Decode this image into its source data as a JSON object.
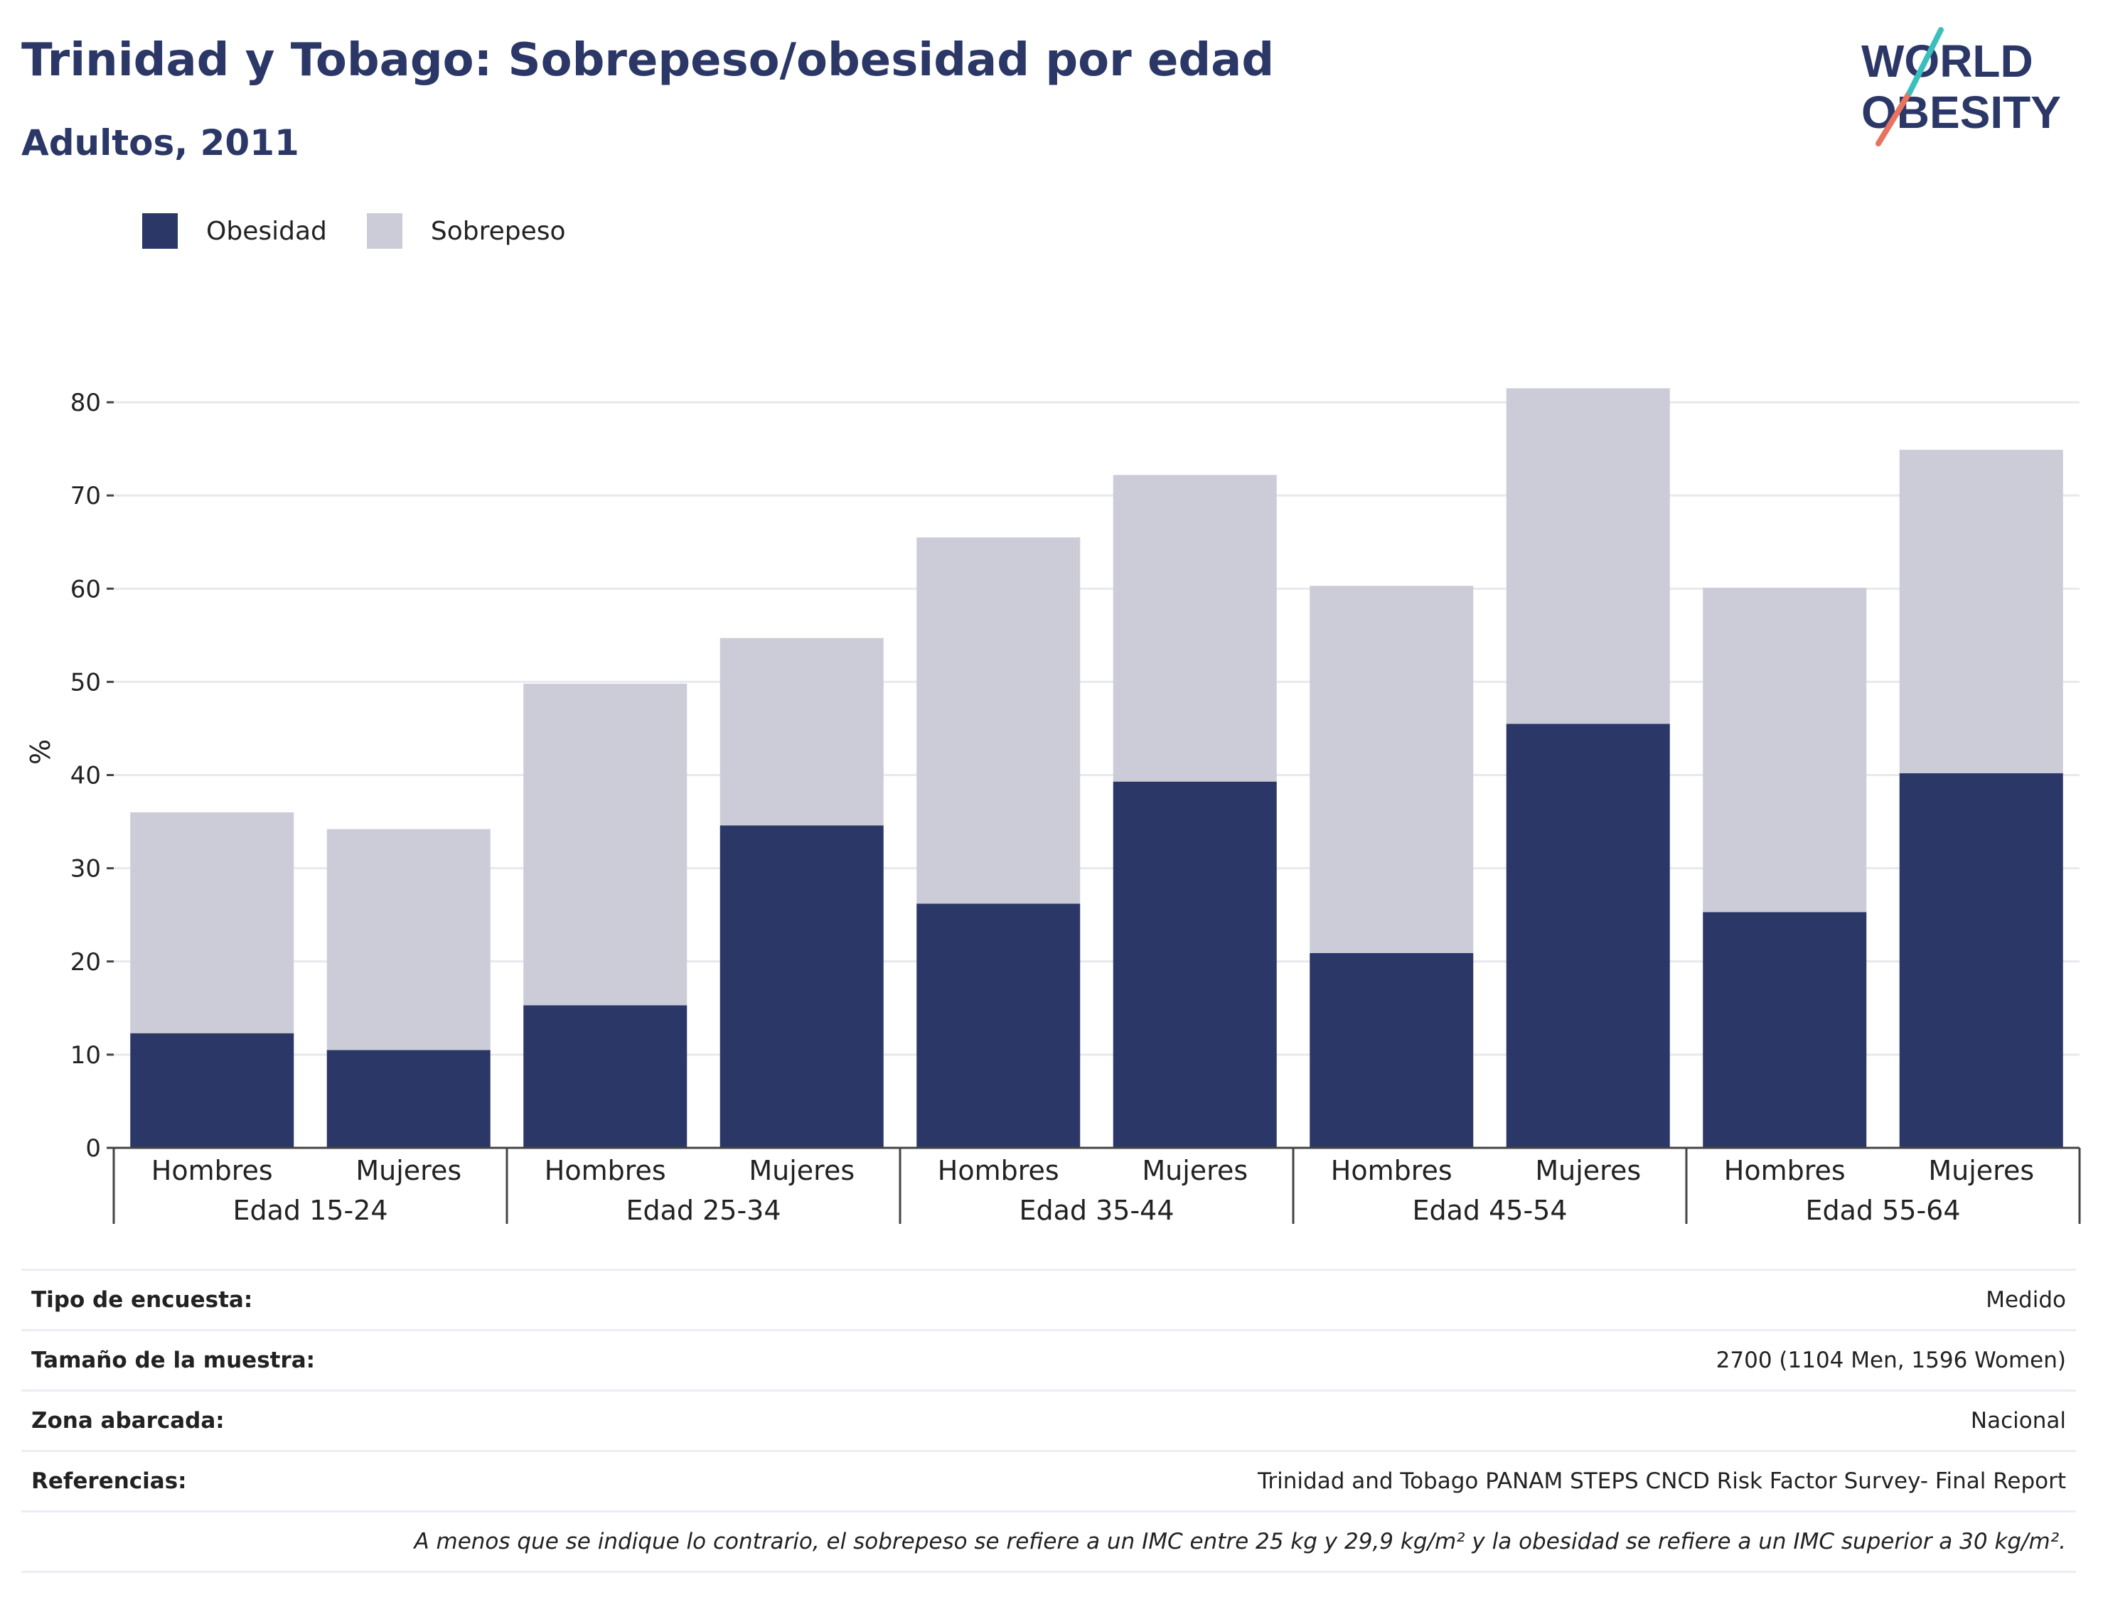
{
  "header": {
    "title": "Trinidad y Tobago: Sobrepeso/obesidad por edad",
    "subtitle": "Adultos, 2011"
  },
  "logo": {
    "line1": "WORLD",
    "line2": "OBESITY"
  },
  "colors": {
    "obesity": "#2b3766",
    "overweight": "#cbccd8",
    "grid": "#e8e9ee",
    "text": "#222222"
  },
  "legend": {
    "items": [
      "Obesidad",
      "Sobrepeso"
    ]
  },
  "chart_data": {
    "type": "bar",
    "stacked": true,
    "ylabel": "%",
    "ylim": [
      0,
      85
    ],
    "yticks": [
      0,
      10,
      20,
      30,
      40,
      50,
      60,
      70,
      80
    ],
    "groups": [
      "Edad 15-24",
      "Edad 25-34",
      "Edad 35-44",
      "Edad 45-54",
      "Edad 55-64"
    ],
    "categories": [
      "Hombres",
      "Mujeres",
      "Hombres",
      "Mujeres",
      "Hombres",
      "Mujeres",
      "Hombres",
      "Mujeres",
      "Hombres",
      "Mujeres"
    ],
    "series": [
      {
        "name": "Obesidad",
        "values": [
          12.3,
          10.5,
          15.3,
          34.6,
          26.2,
          39.3,
          20.9,
          45.5,
          25.3,
          40.2
        ]
      },
      {
        "name": "Sobrepeso",
        "values": [
          23.7,
          23.7,
          34.5,
          20.1,
          39.3,
          32.9,
          39.4,
          36.0,
          34.8,
          34.7
        ]
      }
    ],
    "grid": true,
    "legend_position": "top-left"
  },
  "info": {
    "rows": [
      {
        "label": "Tipo de encuesta:",
        "value": "Medido"
      },
      {
        "label": "Tamaño de la muestra:",
        "value": "2700 (1104 Men, 1596 Women)"
      },
      {
        "label": "Zona abarcada:",
        "value": "Nacional"
      },
      {
        "label": "Referencias:",
        "value": "Trinidad and Tobago PANAM STEPS CNCD Risk Factor Survey- Final Report"
      }
    ],
    "note": "A menos que se indique lo contrario, el sobrepeso se refiere a un IMC entre 25 kg y 29,9 kg/m² y la obesidad se refiere a un IMC superior a 30 kg/m²."
  }
}
